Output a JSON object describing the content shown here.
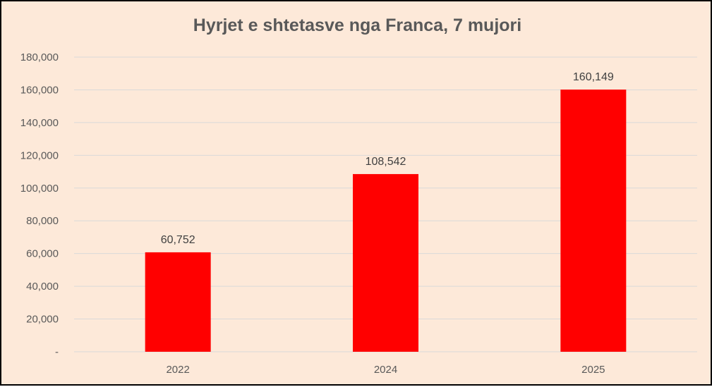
{
  "colors": {
    "background": "#fde9d9",
    "bar": "#ff0000",
    "grid": "#d9d9d9",
    "border": "#000000"
  },
  "chart_data": {
    "type": "bar",
    "title": "Hyrjet e shtetasve nga Franca, 7 mujori",
    "categories": [
      "2022",
      "2024",
      "2025"
    ],
    "values": [
      60752,
      108542,
      160149
    ],
    "data_labels": [
      "60,752",
      "108,542",
      "160,149"
    ],
    "ylim": [
      0,
      180000
    ],
    "yticks": [
      {
        "value": 0,
        "label": "-"
      },
      {
        "value": 20000,
        "label": "20,000"
      },
      {
        "value": 40000,
        "label": "40,000"
      },
      {
        "value": 60000,
        "label": "60,000"
      },
      {
        "value": 80000,
        "label": "80,000"
      },
      {
        "value": 100000,
        "label": "100,000"
      },
      {
        "value": 120000,
        "label": "120,000"
      },
      {
        "value": 140000,
        "label": "140,000"
      },
      {
        "value": 160000,
        "label": "160,000"
      },
      {
        "value": 180000,
        "label": "180,000"
      }
    ],
    "grid": true,
    "legend": "none"
  }
}
